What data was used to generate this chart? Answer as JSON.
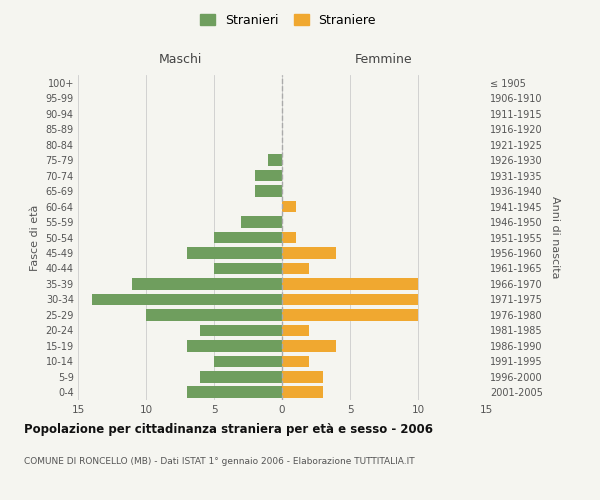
{
  "age_groups": [
    "0-4",
    "5-9",
    "10-14",
    "15-19",
    "20-24",
    "25-29",
    "30-34",
    "35-39",
    "40-44",
    "45-49",
    "50-54",
    "55-59",
    "60-64",
    "65-69",
    "70-74",
    "75-79",
    "80-84",
    "85-89",
    "90-94",
    "95-99",
    "100+"
  ],
  "birth_years": [
    "2001-2005",
    "1996-2000",
    "1991-1995",
    "1986-1990",
    "1981-1985",
    "1976-1980",
    "1971-1975",
    "1966-1970",
    "1961-1965",
    "1956-1960",
    "1951-1955",
    "1946-1950",
    "1941-1945",
    "1936-1940",
    "1931-1935",
    "1926-1930",
    "1921-1925",
    "1916-1920",
    "1911-1915",
    "1906-1910",
    "≤ 1905"
  ],
  "males": [
    7,
    6,
    5,
    7,
    6,
    10,
    14,
    11,
    5,
    7,
    5,
    3,
    0,
    2,
    2,
    1,
    0,
    0,
    0,
    0,
    0
  ],
  "females": [
    3,
    3,
    2,
    4,
    2,
    10,
    10,
    10,
    2,
    4,
    1,
    0,
    1,
    0,
    0,
    0,
    0,
    0,
    0,
    0,
    0
  ],
  "male_color": "#6f9e5e",
  "female_color": "#f0a830",
  "male_label": "Stranieri",
  "female_label": "Straniere",
  "xlim": 15,
  "title": "Popolazione per cittadinanza straniera per età e sesso - 2006",
  "subtitle": "COMUNE DI RONCELLO (MB) - Dati ISTAT 1° gennaio 2006 - Elaborazione TUTTITALIA.IT",
  "xlabel_left": "Maschi",
  "xlabel_right": "Femmine",
  "ylabel_left": "Fasce di età",
  "ylabel_right": "Anni di nascita",
  "background_color": "#f5f5f0",
  "grid_color": "#cccccc"
}
